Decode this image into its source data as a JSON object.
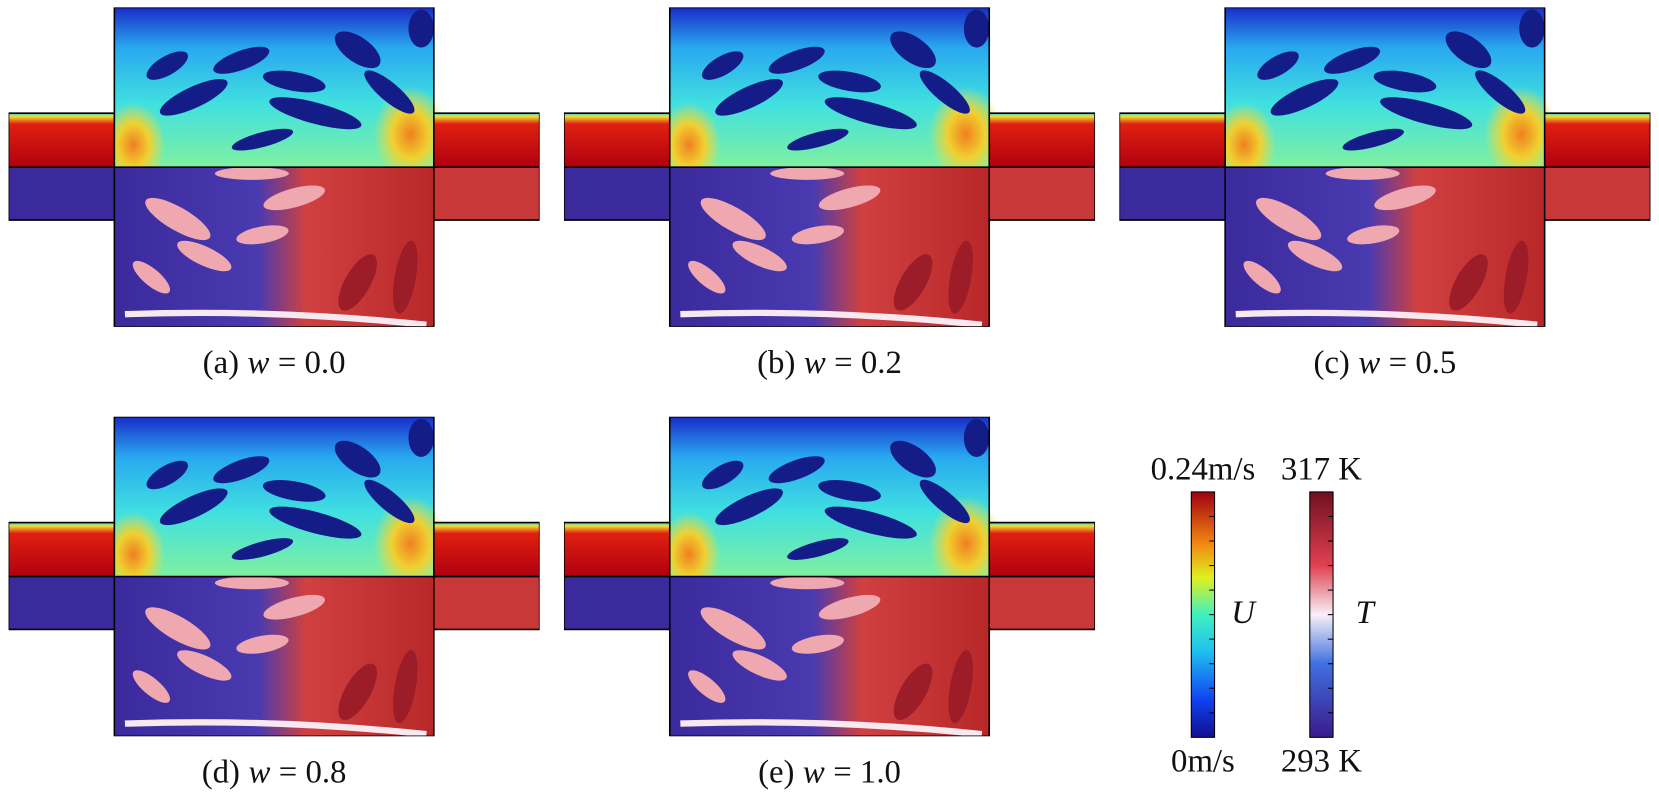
{
  "panels": [
    {
      "label": "(a)",
      "variable": "w",
      "value": "= 0.0"
    },
    {
      "label": "(b)",
      "variable": "w",
      "value": "= 0.2"
    },
    {
      "label": "(c)",
      "variable": "w",
      "value": "= 0.5"
    },
    {
      "label": "(d)",
      "variable": "w",
      "value": "= 0.8"
    },
    {
      "label": "(e)",
      "variable": "w",
      "value": "= 1.0"
    }
  ],
  "colorbars": [
    {
      "symbol": "U",
      "max": "0.24m/s",
      "min": "0m/s"
    },
    {
      "symbol": "T",
      "max": "317 K",
      "min": "293 K"
    }
  ]
}
